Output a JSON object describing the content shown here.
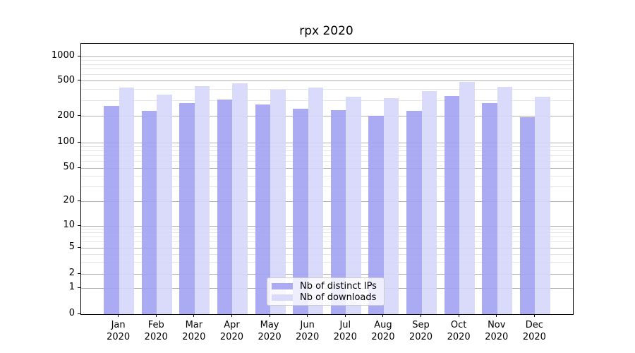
{
  "title": "rpx 2020",
  "chart_data": {
    "type": "bar",
    "title": "rpx 2020",
    "categories": [
      "Jan",
      "Feb",
      "Mar",
      "Apr",
      "May",
      "Jun",
      "Jul",
      "Aug",
      "Sep",
      "Oct",
      "Nov",
      "Dec"
    ],
    "year": "2020",
    "series": [
      {
        "name": "Nb of distinct IPs",
        "color": "#a2a2f3",
        "values": [
          260,
          230,
          281,
          306,
          272,
          241,
          234,
          203,
          229,
          340,
          280,
          196
        ]
      },
      {
        "name": "Nb of downloads",
        "color": "#d6d6fa",
        "values": [
          424,
          350,
          433,
          468,
          396,
          418,
          330,
          320,
          380,
          487,
          428,
          332
        ]
      }
    ],
    "xlabel": "",
    "ylabel": "",
    "yscale": "symlog",
    "yticks": [
      0,
      1,
      2,
      5,
      10,
      20,
      50,
      100,
      200,
      500,
      1000
    ],
    "minor_gridlines": [
      3,
      4,
      6,
      7,
      8,
      9,
      30,
      40,
      60,
      70,
      80,
      90,
      300,
      400,
      600,
      700,
      800,
      900
    ],
    "ylim": [
      0,
      1400
    ],
    "grid": true,
    "legend_position": "lower-center",
    "grid_major_color": "#b0b0b0",
    "grid_minor_color": "#e6e6e6"
  }
}
